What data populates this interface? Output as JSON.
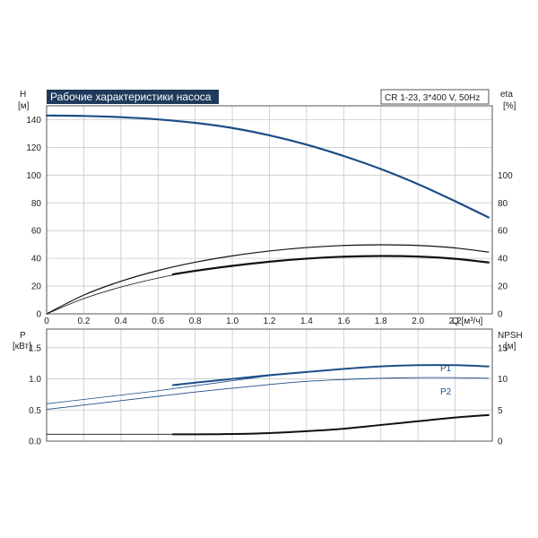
{
  "title": "Рабочие характеристики насоса",
  "info": "CR 1-23, 3*400 V, 50Hz",
  "colors": {
    "blue": "#1b4f86",
    "black": "#111111",
    "grid": "#c8c8c8",
    "title_bg": "#1f3a5a"
  },
  "chart_data": [
    {
      "type": "line",
      "panel": "top",
      "left_axis": {
        "label_line1": "H",
        "label_line2": "[м]",
        "ticks": [
          "0",
          "20",
          "40",
          "60",
          "80",
          "100",
          "120",
          "140"
        ],
        "ylim": [
          0,
          150
        ]
      },
      "right_axis": {
        "label_line1": "eta",
        "label_line2": "[%]",
        "ticks": [
          "0",
          "20",
          "40",
          "60",
          "80",
          "100"
        ],
        "ylim": [
          0,
          150
        ]
      },
      "x_axis": {
        "ticks": [
          "0",
          "0.2",
          "0.4",
          "0.6",
          "0.8",
          "1.0",
          "1.2",
          "1.4",
          "1.6",
          "1.8",
          "2.0",
          "2.2"
        ],
        "label": "Q [м³/ч]",
        "xlim": [
          0,
          2.4
        ]
      },
      "grid": true,
      "series": [
        {
          "color": "blue",
          "width": 2.2,
          "axis": "left",
          "x": [
            0,
            0.2,
            0.4,
            0.6,
            0.8,
            1.0,
            1.2,
            1.4,
            1.6,
            1.8,
            2.0,
            2.2,
            2.38
          ],
          "y": [
            143,
            142.7,
            141.8,
            140.2,
            137.7,
            134.0,
            128.7,
            122.0,
            113.8,
            104.4,
            93.5,
            81.2,
            69.5
          ]
        },
        {
          "color": "black",
          "width": 1.2,
          "axis": "right",
          "x": [
            0,
            0.2,
            0.4,
            0.6,
            0.8,
            1.0,
            1.2,
            1.4,
            1.6,
            1.8,
            2.0,
            2.2,
            2.38
          ],
          "y": [
            0,
            13.5,
            23.5,
            31.2,
            37.2,
            41.8,
            45.3,
            47.8,
            49.3,
            49.8,
            49.3,
            47.5,
            44.5
          ]
        },
        {
          "color": "black",
          "width": 0.8,
          "axis": "right",
          "x": [
            0,
            0.2,
            0.4,
            0.6,
            0.8,
            1.0,
            1.2,
            1.4,
            1.6,
            1.8,
            2.0,
            2.2,
            2.38
          ],
          "y": [
            0,
            11.0,
            19.3,
            25.8,
            30.8,
            34.5,
            37.6,
            39.8,
            41.2,
            41.7,
            41.3,
            39.7,
            37.0
          ]
        },
        {
          "color": "black",
          "width": 2.2,
          "axis": "right",
          "x": [
            0.68,
            0.8,
            1.0,
            1.2,
            1.4,
            1.6,
            1.8,
            2.0,
            2.2,
            2.38
          ],
          "y": [
            28.5,
            31.0,
            34.6,
            37.6,
            39.8,
            41.2,
            41.7,
            41.3,
            39.7,
            37.0
          ]
        }
      ]
    },
    {
      "type": "line",
      "panel": "bottom",
      "left_axis": {
        "label_line1": "P",
        "label_line2": "[кВт]",
        "ticks": [
          "0.0",
          "0.5",
          "1.0",
          "1.5"
        ],
        "ylim": [
          0,
          1.8
        ]
      },
      "right_axis": {
        "label_line1": "NPSH",
        "label_line2": "[м]",
        "ticks": [
          "0",
          "5",
          "10",
          "15"
        ],
        "ylim": [
          0,
          18
        ]
      },
      "x_axis": {
        "xlim": [
          0,
          2.4
        ]
      },
      "grid": true,
      "series": [
        {
          "name": "P1",
          "color": "blue",
          "width": 0.8,
          "axis": "left",
          "x": [
            0,
            0.2,
            0.4,
            0.6,
            0.8,
            1.0,
            1.2,
            1.4,
            1.6,
            1.8,
            2.0,
            2.2,
            2.38
          ],
          "y": [
            0.6,
            0.67,
            0.74,
            0.81,
            0.89,
            0.97,
            1.05,
            1.11,
            1.16,
            1.2,
            1.22,
            1.22,
            1.2
          ]
        },
        {
          "color": "blue",
          "width": 2.0,
          "axis": "left",
          "x": [
            0.68,
            0.8,
            1.0,
            1.2,
            1.4,
            1.6,
            1.8,
            2.0,
            2.2,
            2.38
          ],
          "y": [
            0.9,
            0.94,
            1.0,
            1.06,
            1.11,
            1.16,
            1.2,
            1.22,
            1.22,
            1.2
          ]
        },
        {
          "name": "P2",
          "color": "blue",
          "width": 0.9,
          "axis": "left",
          "x": [
            0,
            0.2,
            0.4,
            0.6,
            0.8,
            1.0,
            1.2,
            1.4,
            1.6,
            1.8,
            2.0,
            2.2,
            2.38
          ],
          "y": [
            0.51,
            0.58,
            0.65,
            0.72,
            0.79,
            0.85,
            0.91,
            0.96,
            0.99,
            1.01,
            1.02,
            1.02,
            1.01
          ]
        },
        {
          "color": "black",
          "width": 0.9,
          "axis": "right",
          "x": [
            0,
            0.2,
            0.4,
            0.68
          ],
          "y": [
            1.1,
            1.1,
            1.1,
            1.1
          ]
        },
        {
          "color": "black",
          "width": 2.0,
          "axis": "right",
          "x": [
            0.68,
            0.8,
            1.0,
            1.2,
            1.4,
            1.6,
            1.8,
            2.0,
            2.2,
            2.38
          ],
          "y": [
            1.1,
            1.1,
            1.15,
            1.3,
            1.6,
            2.0,
            2.6,
            3.2,
            3.8,
            4.2
          ]
        }
      ]
    }
  ]
}
